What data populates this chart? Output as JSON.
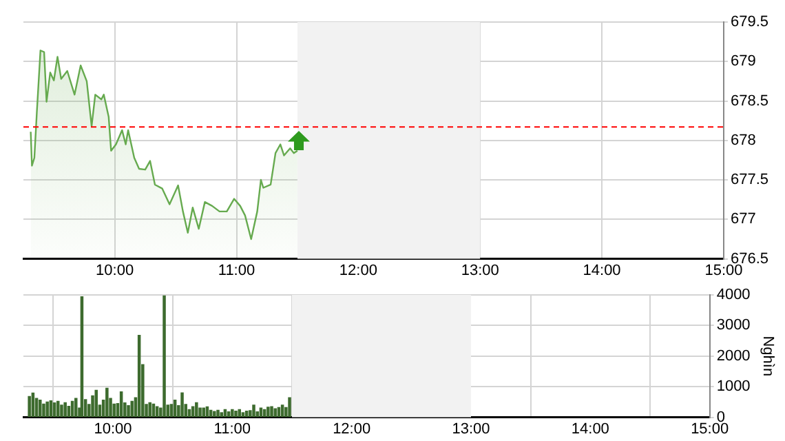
{
  "chart_data": [
    {
      "type": "area",
      "x": [
        9.31,
        9.32,
        9.34,
        9.36,
        9.39,
        9.42,
        9.44,
        9.47,
        9.5,
        9.53,
        9.56,
        9.61,
        9.67,
        9.72,
        9.77,
        9.81,
        9.84,
        9.89,
        9.91,
        9.95,
        9.97,
        10.01,
        10.06,
        10.09,
        10.11,
        10.16,
        10.2,
        10.25,
        10.29,
        10.33,
        10.39,
        10.45,
        10.52,
        10.56,
        10.6,
        10.64,
        10.69,
        10.74,
        10.8,
        10.86,
        10.92,
        10.98,
        11.03,
        11.07,
        11.12,
        11.17,
        11.2,
        11.22,
        11.28,
        11.32,
        11.36,
        11.39,
        11.44,
        11.47,
        11.5
      ],
      "series": [
        {
          "color": "#66aa4f",
          "values": [
            678.11,
            677.68,
            677.78,
            678.35,
            679.14,
            679.12,
            678.49,
            678.86,
            678.76,
            679.06,
            678.78,
            678.88,
            678.58,
            678.95,
            678.75,
            678.18,
            678.58,
            678.52,
            678.58,
            678.3,
            677.87,
            677.95,
            678.13,
            677.95,
            678.13,
            677.78,
            677.64,
            677.63,
            677.74,
            677.44,
            677.39,
            677.19,
            677.43,
            677.1,
            676.83,
            677.15,
            676.88,
            677.22,
            677.17,
            677.1,
            677.1,
            677.26,
            677.17,
            677.05,
            676.75,
            677.1,
            677.5,
            677.4,
            677.44,
            677.84,
            677.95,
            677.81,
            677.9,
            677.84,
            677.87
          ]
        }
      ],
      "xlim": [
        9.25,
        15
      ],
      "xticks": [
        {
          "value": 10,
          "label": "10:00"
        },
        {
          "value": 11,
          "label": "11:00"
        },
        {
          "value": 12,
          "label": "12:00"
        },
        {
          "value": 13,
          "label": "13:00"
        },
        {
          "value": 14,
          "label": "14:00"
        },
        {
          "value": 15,
          "label": "15:00"
        }
      ],
      "ylim": [
        676.5,
        679.5
      ],
      "yticks": [
        676.5,
        677,
        677.5,
        678,
        678.5,
        679,
        679.5
      ],
      "ref_lines": [
        {
          "axis": "y",
          "value": 678.17,
          "color": "#ff0000",
          "line_style": "dashed"
        }
      ],
      "bands": [
        {
          "axis": "x",
          "from": 11.5,
          "to": 13,
          "color": "#f2f2f2"
        }
      ],
      "grid": true,
      "legend": false,
      "marker": "none"
    },
    {
      "type": "bar",
      "x": [
        9.3,
        9.33,
        9.36,
        9.39,
        9.42,
        9.45,
        9.48,
        9.51,
        9.54,
        9.57,
        9.6,
        9.63,
        9.66,
        9.69,
        9.72,
        9.74,
        9.77,
        9.8,
        9.83,
        9.86,
        9.89,
        9.92,
        9.95,
        9.98,
        10.01,
        10.04,
        10.07,
        10.1,
        10.13,
        10.16,
        10.19,
        10.22,
        10.25,
        10.28,
        10.31,
        10.34,
        10.37,
        10.4,
        10.43,
        10.46,
        10.49,
        10.52,
        10.55,
        10.58,
        10.61,
        10.64,
        10.67,
        10.7,
        10.73,
        10.76,
        10.79,
        10.82,
        10.85,
        10.88,
        10.91,
        10.94,
        10.97,
        11.0,
        11.03,
        11.06,
        11.09,
        11.12,
        11.15,
        11.18,
        11.21,
        11.24,
        11.27,
        11.3,
        11.33,
        11.36,
        11.39,
        11.42,
        11.45,
        11.48
      ],
      "series": [
        {
          "color": "#3d6b2e",
          "values": [
            680,
            790,
            620,
            560,
            430,
            500,
            540,
            470,
            520,
            400,
            480,
            360,
            520,
            620,
            300,
            3940,
            580,
            420,
            700,
            880,
            400,
            560,
            950,
            620,
            430,
            450,
            830,
            470,
            380,
            520,
            640,
            2680,
            1720,
            420,
            480,
            430,
            350,
            300,
            3970,
            400,
            420,
            560,
            380,
            800,
            420,
            250,
            350,
            480,
            300,
            300,
            340,
            230,
            190,
            230,
            150,
            250,
            180,
            250,
            200,
            250,
            150,
            200,
            220,
            400,
            180,
            300,
            250,
            330,
            350,
            280,
            320,
            400,
            320,
            640
          ]
        }
      ],
      "xlim": [
        9.25,
        15
      ],
      "xticks": [
        {
          "value": 10,
          "label": "10:00"
        },
        {
          "value": 11,
          "label": "11:00"
        },
        {
          "value": 12,
          "label": "12:00"
        },
        {
          "value": 13,
          "label": "13:00"
        },
        {
          "value": 14,
          "label": "14:00"
        },
        {
          "value": 15,
          "label": "15:00"
        }
      ],
      "ylim": [
        0,
        4000
      ],
      "yticks": [
        0,
        1000,
        2000,
        3000,
        4000
      ],
      "ylabel": "Nghìn",
      "bands": [
        {
          "axis": "x",
          "from": 11.5,
          "to": 13,
          "color": "#f2f2f2"
        }
      ],
      "grid": true,
      "legend": false
    }
  ]
}
